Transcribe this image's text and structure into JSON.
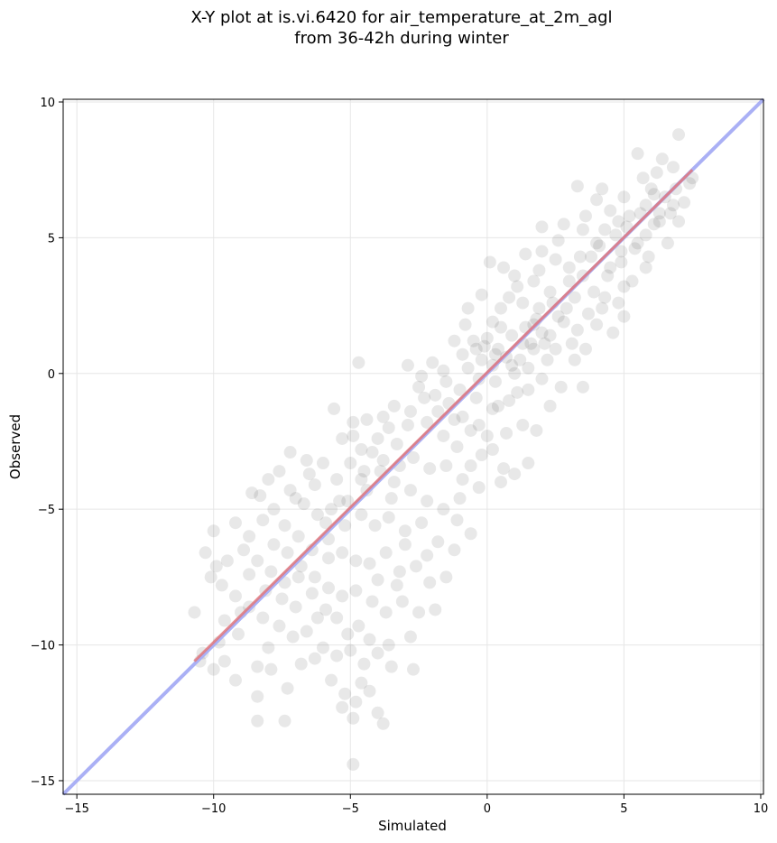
{
  "chart_data": {
    "type": "scatter",
    "title_line1": "X-Y plot at is.vi.6420 for air_temperature_at_2m_agl",
    "title_line2": "from 36-42h during winter",
    "xlabel": "Simulated",
    "ylabel": "Observed",
    "xlim": [
      -15.5,
      10.1
    ],
    "ylim": [
      -15.5,
      10.1
    ],
    "xticks": [
      -15,
      -10,
      -5,
      0,
      5,
      10
    ],
    "yticks": [
      -15,
      -10,
      -5,
      0,
      5,
      10
    ],
    "xtick_labels": [
      "−15",
      "−10",
      "−5",
      "0",
      "5",
      "10"
    ],
    "ytick_labels": [
      "−15",
      "−10",
      "−5",
      "0",
      "5",
      "10"
    ],
    "grid": true,
    "identity_line": {
      "from": [
        -15.5,
        -15.5
      ],
      "to": [
        10.1,
        10.1
      ],
      "color": "#aab0f5"
    },
    "fit_line": {
      "from": [
        -10.7,
        -10.6
      ],
      "to": [
        7.5,
        7.5
      ],
      "color": "#e0787c"
    },
    "point_color": "#000000",
    "point_opacity": 0.09,
    "points": [
      [
        7,
        8.8
      ],
      [
        5.5,
        8.1
      ],
      [
        6.2,
        7.4
      ],
      [
        6.8,
        7.6
      ],
      [
        7.5,
        7.2
      ],
      [
        6,
        6.8
      ],
      [
        5,
        6.5
      ],
      [
        4.5,
        6
      ],
      [
        5.2,
        5.8
      ],
      [
        6.3,
        5.9
      ],
      [
        6.5,
        6.5
      ],
      [
        5.8,
        6.2
      ],
      [
        4,
        6.4
      ],
      [
        3.3,
        6.9
      ],
      [
        4.3,
        5.3
      ],
      [
        4.8,
        5.6
      ],
      [
        6.1,
        5.5
      ],
      [
        6.7,
        5.9
      ],
      [
        7,
        5.6
      ],
      [
        5.5,
        4.8
      ],
      [
        5.9,
        4.3
      ],
      [
        4.9,
        4.5
      ],
      [
        4,
        4.8
      ],
      [
        3.5,
        5.3
      ],
      [
        2.8,
        5.5
      ],
      [
        2,
        5.4
      ],
      [
        3.8,
        4.3
      ],
      [
        4.5,
        3.9
      ],
      [
        5,
        3.2
      ],
      [
        4.8,
        2.6
      ],
      [
        5,
        2.1
      ],
      [
        4.6,
        1.5
      ],
      [
        4.2,
        2.4
      ],
      [
        3.5,
        3.6
      ],
      [
        3,
        3.9
      ],
      [
        2.5,
        4.2
      ],
      [
        2,
        4.5
      ],
      [
        1.4,
        4.4
      ],
      [
        1,
        3.6
      ],
      [
        1.7,
        3.4
      ],
      [
        2.3,
        3
      ],
      [
        3.2,
        2.8
      ],
      [
        3.7,
        2.2
      ],
      [
        3.3,
        1.6
      ],
      [
        2.8,
        1.9
      ],
      [
        2.3,
        1.4
      ],
      [
        1.8,
        2
      ],
      [
        1.3,
        2.6
      ],
      [
        0.8,
        2.8
      ],
      [
        0.5,
        2.4
      ],
      [
        0.2,
        1.9
      ],
      [
        0,
        1.3
      ],
      [
        0.4,
        0.9
      ],
      [
        0.9,
        1.4
      ],
      [
        1.4,
        1.7
      ],
      [
        2,
        1.5
      ],
      [
        2.5,
        0.9
      ],
      [
        2.2,
        0.5
      ],
      [
        1.7,
        0.9
      ],
      [
        1.2,
        0.5
      ],
      [
        0.7,
        0.6
      ],
      [
        0.2,
        0.3
      ],
      [
        -0.2,
        0.5
      ],
      [
        -0.5,
        1.2
      ],
      [
        -0.8,
        1.8
      ],
      [
        -1.2,
        1.2
      ],
      [
        -0.7,
        0.2
      ],
      [
        -0.3,
        -0.2
      ],
      [
        0.3,
        -0.3
      ],
      [
        1,
        0
      ],
      [
        1.5,
        0.2
      ],
      [
        2,
        -0.2
      ],
      [
        2.7,
        -0.5
      ],
      [
        3.2,
        0.5
      ],
      [
        3.6,
        0.9
      ],
      [
        3.5,
        -0.5
      ],
      [
        2.3,
        -1.2
      ],
      [
        1.5,
        -0.6
      ],
      [
        0.8,
        -1
      ],
      [
        0.2,
        -1.3
      ],
      [
        -0.4,
        -0.9
      ],
      [
        -1,
        -0.6
      ],
      [
        -1.5,
        -0.3
      ],
      [
        -2,
        0.4
      ],
      [
        -2.5,
        -0.5
      ],
      [
        -1.8,
        -1.4
      ],
      [
        -1.2,
        -1.7
      ],
      [
        -0.6,
        -2.1
      ],
      [
        0,
        -2.3
      ],
      [
        0.7,
        -2.2
      ],
      [
        1.3,
        -1.9
      ],
      [
        1.8,
        -2.1
      ],
      [
        -0.2,
        -3
      ],
      [
        -0.6,
        -3.4
      ],
      [
        -1.1,
        -2.7
      ],
      [
        -1.6,
        -2.3
      ],
      [
        -2.2,
        -1.8
      ],
      [
        -2.8,
        -1.4
      ],
      [
        -3.4,
        -1.2
      ],
      [
        -3.8,
        -1.6
      ],
      [
        -4.4,
        -1.7
      ],
      [
        -4.9,
        -1.8
      ],
      [
        -5.3,
        -2.4
      ],
      [
        -4.6,
        -2.8
      ],
      [
        -4,
        -2.4
      ],
      [
        -3.3,
        -2.6
      ],
      [
        -2.7,
        -3.1
      ],
      [
        -2.1,
        -3.5
      ],
      [
        -1.5,
        -3.4
      ],
      [
        -0.9,
        -3.9
      ],
      [
        -0.3,
        -4.2
      ],
      [
        0.5,
        -4
      ],
      [
        1,
        -3.7
      ],
      [
        1.5,
        -3.3
      ],
      [
        -1,
        -4.6
      ],
      [
        -1.6,
        -5
      ],
      [
        -2.2,
        -4.7
      ],
      [
        -2.8,
        -4.3
      ],
      [
        -3.4,
        -4
      ],
      [
        -3.9,
        -3.6
      ],
      [
        -4.5,
        -3.6
      ],
      [
        -5,
        -3.3
      ],
      [
        -5.5,
        -3.9
      ],
      [
        -6,
        -3.3
      ],
      [
        -6.6,
        -3.2
      ],
      [
        -7.2,
        -2.9
      ],
      [
        -7.6,
        -3.6
      ],
      [
        -7.2,
        -4.3
      ],
      [
        -6.7,
        -4.8
      ],
      [
        -6.2,
        -5.2
      ],
      [
        -5.7,
        -5
      ],
      [
        -5.1,
        -4.7
      ],
      [
        -4.6,
        -5.2
      ],
      [
        -4.1,
        -5.6
      ],
      [
        -3.6,
        -5.3
      ],
      [
        -3,
        -5.8
      ],
      [
        -2.4,
        -5.5
      ],
      [
        -1.8,
        -6.2
      ],
      [
        -1.2,
        -6.5
      ],
      [
        -0.6,
        -5.9
      ],
      [
        -8,
        -3.9
      ],
      [
        -8.3,
        -4.5
      ],
      [
        -7.8,
        -5
      ],
      [
        -7.4,
        -5.6
      ],
      [
        -6.9,
        -6
      ],
      [
        -6.4,
        -6.5
      ],
      [
        -5.8,
        -6.1
      ],
      [
        -5.3,
        -6.6
      ],
      [
        -4.8,
        -6.9
      ],
      [
        -4.3,
        -7
      ],
      [
        -3.7,
        -6.6
      ],
      [
        -3.2,
        -7.3
      ],
      [
        -2.6,
        -7.1
      ],
      [
        -2.1,
        -7.7
      ],
      [
        -1.5,
        -7.5
      ],
      [
        -9.2,
        -5.5
      ],
      [
        -8.7,
        -6
      ],
      [
        -8.9,
        -6.5
      ],
      [
        -8.4,
        -6.9
      ],
      [
        -7.9,
        -7.3
      ],
      [
        -7.4,
        -7.7
      ],
      [
        -6.8,
        -7.1
      ],
      [
        -6.3,
        -7.5
      ],
      [
        -5.8,
        -7.9
      ],
      [
        -5.3,
        -8.2
      ],
      [
        -4.8,
        -8
      ],
      [
        -4.2,
        -8.4
      ],
      [
        -3.7,
        -8.8
      ],
      [
        -3.1,
        -8.4
      ],
      [
        -2.5,
        -8.8
      ],
      [
        -1.9,
        -8.7
      ],
      [
        -10,
        -5.8
      ],
      [
        -10.3,
        -6.6
      ],
      [
        -9.9,
        -7.1
      ],
      [
        -9.7,
        -7.8
      ],
      [
        -9.2,
        -8.2
      ],
      [
        -8.7,
        -8.6
      ],
      [
        -8.2,
        -9
      ],
      [
        -7.6,
        -9.3
      ],
      [
        -7.1,
        -9.7
      ],
      [
        -6.6,
        -9.5
      ],
      [
        -6,
        -10.1
      ],
      [
        -5.5,
        -10.4
      ],
      [
        -5,
        -10.2
      ],
      [
        -4.5,
        -10.7
      ],
      [
        -4,
        -10.3
      ],
      [
        -3.5,
        -10.8
      ],
      [
        -2.7,
        -10.9
      ],
      [
        -10.7,
        -8.8
      ],
      [
        -10.4,
        -10.3
      ],
      [
        -10,
        -10.9
      ],
      [
        -9.6,
        -10.6
      ],
      [
        -9.2,
        -11.3
      ],
      [
        -8.4,
        -10.8
      ],
      [
        -7.9,
        -10.9
      ],
      [
        -7.3,
        -11.6
      ],
      [
        -6.8,
        -10.7
      ],
      [
        -6.3,
        -10.5
      ],
      [
        -5.7,
        -11.3
      ],
      [
        -5.2,
        -11.8
      ],
      [
        -4.8,
        -12.1
      ],
      [
        -4.6,
        -11.4
      ],
      [
        -4.3,
        -11.7
      ],
      [
        -5.3,
        -12.3
      ],
      [
        -4.9,
        -12.7
      ],
      [
        -4,
        -12.5
      ],
      [
        -3.8,
        -12.9
      ],
      [
        -8.4,
        -11.9
      ],
      [
        -8.4,
        -12.8
      ],
      [
        -7.4,
        -12.8
      ],
      [
        -4.9,
        -14.4
      ],
      [
        -5.5,
        -9
      ],
      [
        -5.1,
        -9.6
      ],
      [
        -4.7,
        -9.3
      ],
      [
        -4.3,
        -9.8
      ],
      [
        -3.6,
        -10
      ],
      [
        -5.9,
        -8.7
      ],
      [
        -6.4,
        -8.1
      ],
      [
        -3.3,
        -7.8
      ],
      [
        -8.7,
        -7.4
      ],
      [
        -9.5,
        -6.9
      ],
      [
        -10.1,
        -7.5
      ],
      [
        -9,
        -8.8
      ],
      [
        -9.6,
        -9.1
      ],
      [
        -8,
        -10.1
      ],
      [
        -7,
        -8.6
      ],
      [
        -6.5,
        -3.7
      ],
      [
        -5.6,
        -1.3
      ],
      [
        -4.9,
        -2.3
      ],
      [
        -4.2,
        -2.9
      ],
      [
        -3.6,
        -2
      ],
      [
        -4.7,
        0.4
      ],
      [
        -2.9,
        0.3
      ],
      [
        -2.4,
        -0.1
      ],
      [
        -1.9,
        -0.8
      ],
      [
        -1.4,
        -1.1
      ],
      [
        -0.9,
        -1.6
      ],
      [
        -0.3,
        -1.9
      ],
      [
        0.4,
        -1.2
      ],
      [
        1.1,
        -0.7
      ],
      [
        0.6,
        -3.5
      ],
      [
        -3.5,
        -4.6
      ],
      [
        -2.2,
        -6.7
      ],
      [
        -1.1,
        -5.4
      ],
      [
        0.2,
        -2.8
      ],
      [
        -4.4,
        -4.3
      ],
      [
        -5.4,
        -4.7
      ],
      [
        -5.9,
        -5.5
      ],
      [
        -6.3,
        -4.1
      ],
      [
        -7,
        -4.6
      ],
      [
        -7.8,
        -6.3
      ],
      [
        -8.2,
        -5.4
      ],
      [
        -8.6,
        -4.4
      ],
      [
        -3,
        -6.3
      ],
      [
        -4,
        -7.6
      ],
      [
        -2.8,
        -9.7
      ],
      [
        -6.2,
        -9
      ],
      [
        -7.5,
        -8.3
      ],
      [
        2.9,
        2.4
      ],
      [
        3.9,
        3
      ],
      [
        4.4,
        3.6
      ],
      [
        4.9,
        4.1
      ],
      [
        5.4,
        4.6
      ],
      [
        5.8,
        5.1
      ],
      [
        6.3,
        5.6
      ],
      [
        6.8,
        6.2
      ],
      [
        5.7,
        7.2
      ],
      [
        6.4,
        7.9
      ],
      [
        4.2,
        6.8
      ],
      [
        3.6,
        5.8
      ],
      [
        2.6,
        4.9
      ],
      [
        1.9,
        3.8
      ],
      [
        1.1,
        3.2
      ],
      [
        0.6,
        3.9
      ],
      [
        0.1,
        4.1
      ],
      [
        -0.2,
        2.9
      ],
      [
        -0.7,
        2.4
      ],
      [
        2.6,
        2.1
      ],
      [
        3.1,
        1.1
      ],
      [
        4,
        1.8
      ],
      [
        4.3,
        2.8
      ],
      [
        5.3,
        3.4
      ],
      [
        5.8,
        3.9
      ],
      [
        6.6,
        4.8
      ],
      [
        7.2,
        6.3
      ],
      [
        7.4,
        7
      ],
      [
        6.9,
        6.8
      ],
      [
        1.6,
        1.1
      ],
      [
        0.5,
        1.7
      ],
      [
        -0.1,
        1
      ],
      [
        -0.9,
        0.7
      ],
      [
        -1.6,
        0.1
      ],
      [
        -2.3,
        -0.9
      ],
      [
        -2.9,
        -1.9
      ],
      [
        -3.2,
        -3.4
      ],
      [
        -3.8,
        -3.2
      ],
      [
        -4.6,
        -3.9
      ],
      [
        -5.2,
        -5.6
      ],
      [
        -5.8,
        -6.8
      ],
      [
        -6.9,
        -7.5
      ],
      [
        -7.3,
        -6.6
      ],
      [
        -8.1,
        -8
      ],
      [
        -9.1,
        -9.6
      ],
      [
        -9.8,
        -9.9
      ],
      [
        -10.5,
        -10.6
      ],
      [
        1.7,
        1.8
      ],
      [
        2.1,
        1.1
      ],
      [
        1.3,
        1.1
      ],
      [
        0.9,
        0.3
      ],
      [
        2.4,
        2.6
      ],
      [
        3,
        3.4
      ],
      [
        3.4,
        4.3
      ],
      [
        4.1,
        4.7
      ],
      [
        4.7,
        5.1
      ],
      [
        5.1,
        5.4
      ],
      [
        5.6,
        5.9
      ],
      [
        6.1,
        6.6
      ],
      [
        0.3,
        0.7
      ],
      [
        -0.4,
        0.9
      ],
      [
        1.9,
        2.4
      ]
    ]
  }
}
